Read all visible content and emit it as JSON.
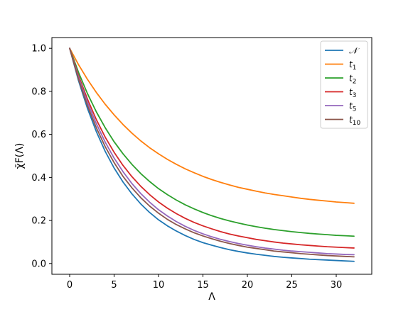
{
  "chart_data": {
    "type": "line",
    "title": "",
    "xlabel": "Λ",
    "ylabel": "χ̄F(Λ)",
    "xlim": [
      -2,
      34
    ],
    "ylim": [
      -0.05,
      1.05
    ],
    "xticks": [
      0,
      5,
      10,
      15,
      20,
      25,
      30
    ],
    "yticks": [
      0.0,
      0.2,
      0.4,
      0.6,
      0.8,
      1.0
    ],
    "xtick_labels": [
      "0",
      "5",
      "10",
      "15",
      "20",
      "25",
      "30"
    ],
    "ytick_labels": [
      "0.0",
      "0.2",
      "0.4",
      "0.6",
      "0.8",
      "1.0"
    ],
    "grid": false,
    "legend_position": "top-right",
    "x": [
      0,
      1,
      2,
      3,
      4,
      5,
      6,
      7,
      8,
      9,
      10,
      11,
      12,
      13,
      14,
      15,
      16,
      17,
      18,
      19,
      20,
      21,
      22,
      23,
      24,
      25,
      26,
      27,
      28,
      29,
      30,
      31,
      32
    ],
    "series": [
      {
        "name": "𝒩",
        "legend_label": "𝒩",
        "color": "#1f77b4",
        "values": [
          1.0,
          0.849,
          0.721,
          0.613,
          0.521,
          0.444,
          0.379,
          0.324,
          0.277,
          0.237,
          0.203,
          0.175,
          0.151,
          0.13,
          0.112,
          0.097,
          0.085,
          0.074,
          0.064,
          0.056,
          0.049,
          0.043,
          0.038,
          0.033,
          0.029,
          0.026,
          0.023,
          0.02,
          0.018,
          0.016,
          0.014,
          0.012,
          0.01
        ]
      },
      {
        "name": "t1",
        "legend_base": "t",
        "legend_sub": "1",
        "color": "#ff7f0e",
        "values": [
          1.0,
          0.924,
          0.856,
          0.795,
          0.74,
          0.691,
          0.646,
          0.606,
          0.57,
          0.538,
          0.51,
          0.484,
          0.461,
          0.44,
          0.422,
          0.405,
          0.39,
          0.377,
          0.365,
          0.354,
          0.345,
          0.336,
          0.328,
          0.321,
          0.315,
          0.309,
          0.303,
          0.298,
          0.294,
          0.29,
          0.286,
          0.283,
          0.28
        ]
      },
      {
        "name": "t2",
        "legend_base": "t",
        "legend_sub": "2",
        "color": "#2ca02c",
        "values": [
          1.0,
          0.888,
          0.79,
          0.705,
          0.631,
          0.566,
          0.51,
          0.461,
          0.418,
          0.381,
          0.348,
          0.32,
          0.295,
          0.273,
          0.254,
          0.237,
          0.222,
          0.209,
          0.198,
          0.188,
          0.179,
          0.171,
          0.164,
          0.158,
          0.153,
          0.148,
          0.144,
          0.14,
          0.137,
          0.134,
          0.131,
          0.129,
          0.127
        ]
      },
      {
        "name": "t3",
        "legend_base": "t",
        "legend_sub": "3",
        "color": "#d62728",
        "values": [
          1.0,
          0.873,
          0.764,
          0.669,
          0.587,
          0.517,
          0.456,
          0.404,
          0.359,
          0.32,
          0.286,
          0.257,
          0.232,
          0.21,
          0.191,
          0.175,
          0.161,
          0.148,
          0.137,
          0.128,
          0.12,
          0.112,
          0.106,
          0.1,
          0.095,
          0.091,
          0.087,
          0.084,
          0.081,
          0.078,
          0.076,
          0.074,
          0.072
        ]
      },
      {
        "name": "t5",
        "legend_base": "t",
        "legend_sub": "5",
        "color": "#9467bd",
        "values": [
          1.0,
          0.865,
          0.749,
          0.65,
          0.564,
          0.49,
          0.427,
          0.372,
          0.325,
          0.285,
          0.25,
          0.221,
          0.195,
          0.173,
          0.154,
          0.138,
          0.124,
          0.112,
          0.102,
          0.093,
          0.085,
          0.078,
          0.072,
          0.067,
          0.062,
          0.058,
          0.055,
          0.052,
          0.049,
          0.046,
          0.044,
          0.042,
          0.041
        ]
      },
      {
        "name": "t10",
        "legend_base": "t",
        "legend_sub": "10",
        "color": "#8c564b",
        "values": [
          1.0,
          0.856,
          0.734,
          0.631,
          0.543,
          0.469,
          0.405,
          0.352,
          0.306,
          0.267,
          0.234,
          0.205,
          0.181,
          0.161,
          0.143,
          0.128,
          0.115,
          0.103,
          0.093,
          0.084,
          0.076,
          0.07,
          0.064,
          0.058,
          0.054,
          0.05,
          0.046,
          0.043,
          0.04,
          0.037,
          0.035,
          0.033,
          0.031
        ]
      }
    ]
  }
}
